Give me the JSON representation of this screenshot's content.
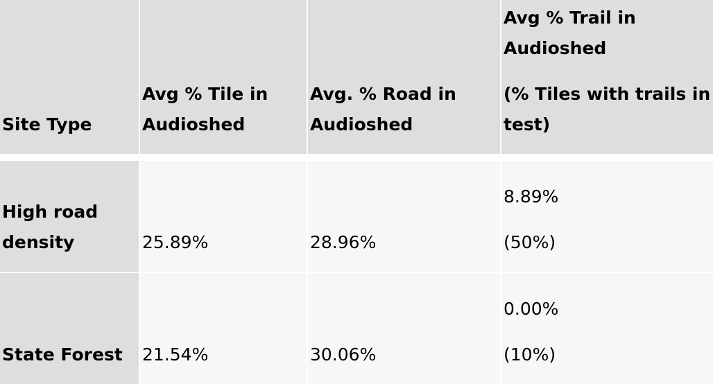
{
  "table": {
    "headers": {
      "site_type": "Site Type",
      "tile_line1": "Avg % Tile in",
      "tile_line2": "Audioshed",
      "road_line1": "Avg. % Road in",
      "road_line2": "Audioshed",
      "trail_line1": "Avg % Trail in",
      "trail_line2": "Audioshed",
      "trail_line3": "(% Tiles with trails in",
      "trail_line4": "test)"
    },
    "rows": [
      {
        "site_type_line1": "High road",
        "site_type_line2": "density",
        "tile": "25.89%",
        "road": "28.96%",
        "trail": "8.89%",
        "trail_tiles": "(50%)"
      },
      {
        "site_type_line1": "State Forest",
        "tile": "21.54%",
        "road": "30.06%",
        "trail": "0.00%",
        "trail_tiles": "(10%)"
      }
    ]
  }
}
